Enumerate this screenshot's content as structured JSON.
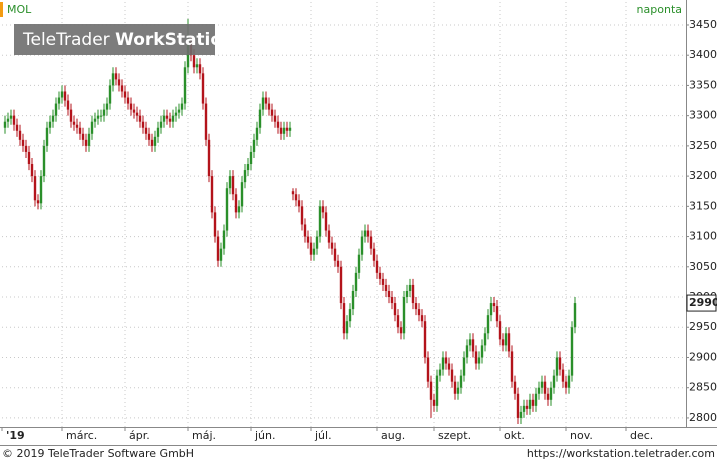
{
  "chart_data": {
    "type": "candlestick",
    "title": "MOL",
    "frequency": "naponta",
    "x": [
      1,
      2,
      3,
      4,
      5,
      6,
      7,
      8,
      9,
      10,
      11,
      12,
      13,
      14,
      15,
      16,
      17,
      18,
      19,
      20,
      21,
      22,
      23,
      24,
      25,
      26,
      27,
      28,
      29,
      30,
      31,
      32,
      33,
      34,
      35,
      36,
      37,
      38,
      39,
      40,
      41,
      42,
      43,
      44,
      45,
      46,
      47,
      48,
      49,
      50,
      51,
      52,
      53,
      54,
      55,
      56,
      57,
      58,
      59,
      60,
      61,
      62,
      63,
      64,
      65,
      66,
      67,
      68,
      69,
      70,
      71,
      72,
      73,
      74,
      75,
      76,
      77,
      78,
      79,
      80,
      81,
      82,
      83,
      84,
      85,
      86,
      87,
      88,
      89,
      90,
      91,
      92,
      93,
      94,
      95,
      96,
      97,
      98,
      99,
      100,
      101,
      102,
      103,
      104,
      105,
      106,
      107,
      108,
      109,
      110,
      111,
      112,
      113,
      114,
      115,
      116,
      117,
      118,
      119,
      120,
      121,
      122,
      123,
      124,
      125,
      126,
      127,
      128,
      129,
      130,
      131,
      132,
      133,
      134,
      135,
      136,
      137,
      138,
      139,
      140,
      141,
      142,
      143,
      144,
      145,
      146,
      147,
      148,
      149,
      150,
      151,
      152,
      153,
      154,
      155,
      156,
      157,
      158,
      159,
      160,
      161,
      162,
      163,
      164,
      165,
      166,
      167,
      168,
      169,
      170,
      171,
      172,
      173,
      174,
      175,
      176,
      177,
      178,
      179,
      180,
      181,
      182,
      183,
      184,
      185,
      186,
      187,
      188,
      189,
      190,
      191
    ],
    "open": [
      3280,
      3290,
      3295,
      3300,
      3285,
      3275,
      3260,
      3250,
      3240,
      3220,
      3200,
      3160,
      3155,
      3200,
      3250,
      3280,
      3290,
      3300,
      3320,
      3330,
      3340,
      3325,
      3310,
      3290,
      3285,
      3280,
      3270,
      3260,
      3250,
      3270,
      3290,
      3295,
      3300,
      3300,
      3310,
      3320,
      3350,
      3370,
      3360,
      3350,
      3340,
      3330,
      3320,
      3310,
      3305,
      3300,
      3290,
      3280,
      3270,
      3260,
      3250,
      3265,
      3280,
      3290,
      3300,
      3295,
      3290,
      3300,
      3305,
      3310,
      3320,
      3380,
      3420,
      3400,
      3380,
      3385,
      3370,
      3320,
      3260,
      3200,
      3140,
      3100,
      3060,
      3080,
      3110,
      3180,
      3200,
      3170,
      3140,
      3150,
      3190,
      3210,
      3220,
      3240,
      3260,
      3280,
      3310,
      3330,
      3320,
      3310,
      3300,
      3290,
      3280,
      3270,
      3280,
      3275,
      3175,
      3170,
      3160,
      3150,
      3120,
      3100,
      3090,
      3070,
      3080,
      3100,
      3150,
      3140,
      3110,
      3090,
      3080,
      3060,
      3050,
      2990,
      2940,
      2960,
      2980,
      3010,
      3040,
      3070,
      3100,
      3110,
      3100,
      3080,
      3060,
      3040,
      3030,
      3020,
      3010,
      3000,
      2990,
      2970,
      2950,
      2940,
      3000,
      3010,
      3020,
      2990,
      2980,
      2970,
      2960,
      2900,
      2860,
      2830,
      2820,
      2870,
      2880,
      2900,
      2890,
      2880,
      2860,
      2840,
      2850,
      2870,
      2900,
      2920,
      2930,
      2910,
      2890,
      2900,
      2920,
      2940,
      2970,
      2990,
      2985,
      2960,
      2930,
      2920,
      2940,
      2910,
      2860,
      2840,
      2800,
      2810,
      2820,
      2815,
      2830,
      2820,
      2840,
      2850,
      2860,
      2840,
      2830,
      2850,
      2870,
      2900,
      2880,
      2860,
      2850,
      2870,
      2950
    ],
    "high": [
      3300,
      3305,
      3310,
      3310,
      3295,
      3285,
      3270,
      3260,
      3250,
      3230,
      3210,
      3170,
      3210,
      3260,
      3290,
      3300,
      3310,
      3330,
      3340,
      3350,
      3350,
      3335,
      3320,
      3300,
      3295,
      3290,
      3280,
      3270,
      3280,
      3300,
      3305,
      3310,
      3310,
      3320,
      3330,
      3360,
      3380,
      3380,
      3370,
      3360,
      3350,
      3340,
      3330,
      3320,
      3315,
      3310,
      3300,
      3290,
      3280,
      3270,
      3275,
      3290,
      3300,
      3310,
      3310,
      3305,
      3310,
      3315,
      3320,
      3330,
      3390,
      3460,
      3430,
      3410,
      3395,
      3395,
      3380,
      3330,
      3270,
      3210,
      3150,
      3110,
      3090,
      3120,
      3190,
      3210,
      3210,
      3180,
      3160,
      3200,
      3220,
      3230,
      3250,
      3270,
      3290,
      3320,
      3340,
      3340,
      3330,
      3320,
      3310,
      3300,
      3290,
      3290,
      3290,
      3290,
      3180,
      3180,
      3170,
      3160,
      3130,
      3110,
      3100,
      3090,
      3110,
      3160,
      3160,
      3150,
      3120,
      3100,
      3090,
      3070,
      3060,
      3000,
      2970,
      2990,
      3020,
      3050,
      3080,
      3110,
      3120,
      3120,
      3110,
      3090,
      3070,
      3050,
      3040,
      3030,
      3020,
      3010,
      3000,
      2980,
      2960,
      3010,
      3020,
      3030,
      3030,
      3000,
      2990,
      2980,
      2970,
      2910,
      2870,
      2840,
      2880,
      2890,
      2910,
      2910,
      2900,
      2890,
      2870,
      2860,
      2880,
      2910,
      2930,
      2940,
      2940,
      2920,
      2910,
      2930,
      2950,
      2980,
      3000,
      3000,
      2995,
      2970,
      2940,
      2950,
      2950,
      2920,
      2870,
      2850,
      2820,
      2830,
      2830,
      2840,
      2840,
      2850,
      2860,
      2870,
      2870,
      2850,
      2860,
      2880,
      2910,
      2910,
      2890,
      2870,
      2880,
      2960,
      3000
    ],
    "low": [
      3270,
      3280,
      3285,
      3275,
      3265,
      3250,
      3240,
      3230,
      3210,
      3190,
      3150,
      3145,
      3145,
      3190,
      3240,
      3270,
      3280,
      3290,
      3310,
      3320,
      3315,
      3300,
      3280,
      3275,
      3270,
      3260,
      3250,
      3240,
      3240,
      3260,
      3280,
      3285,
      3290,
      3290,
      3300,
      3310,
      3340,
      3350,
      3340,
      3330,
      3320,
      3310,
      3300,
      3295,
      3290,
      3280,
      3270,
      3260,
      3250,
      3240,
      3240,
      3255,
      3270,
      3280,
      3285,
      3280,
      3280,
      3290,
      3295,
      3300,
      3310,
      3370,
      3390,
      3370,
      3370,
      3360,
      3310,
      3250,
      3190,
      3130,
      3090,
      3050,
      3050,
      3070,
      3100,
      3170,
      3160,
      3130,
      3130,
      3140,
      3180,
      3200,
      3210,
      3230,
      3250,
      3270,
      3300,
      3310,
      3300,
      3290,
      3280,
      3270,
      3260,
      3260,
      3265,
      3265,
      3160,
      3150,
      3140,
      3110,
      3090,
      3080,
      3060,
      3060,
      3070,
      3090,
      3130,
      3100,
      3080,
      3070,
      3050,
      3040,
      2980,
      2930,
      2930,
      2950,
      2970,
      3000,
      3030,
      3060,
      3090,
      3090,
      3070,
      3050,
      3030,
      3020,
      3010,
      3000,
      2990,
      2980,
      2960,
      2940,
      2930,
      2930,
      2990,
      3000,
      2980,
      2970,
      2960,
      2950,
      2890,
      2850,
      2800,
      2810,
      2810,
      2860,
      2870,
      2880,
      2870,
      2850,
      2830,
      2830,
      2840,
      2860,
      2890,
      2910,
      2900,
      2880,
      2880,
      2890,
      2910,
      2930,
      2960,
      2975,
      2950,
      2920,
      2910,
      2910,
      2900,
      2850,
      2830,
      2790,
      2790,
      2800,
      2805,
      2805,
      2810,
      2810,
      2830,
      2840,
      2830,
      2820,
      2820,
      2840,
      2860,
      2870,
      2850,
      2840,
      2840,
      2860,
      2940
    ],
    "close": [
      3290,
      3295,
      3300,
      3285,
      3275,
      3260,
      3250,
      3240,
      3220,
      3200,
      3160,
      3155,
      3200,
      3250,
      3280,
      3290,
      3300,
      3320,
      3330,
      3340,
      3325,
      3310,
      3290,
      3285,
      3280,
      3270,
      3260,
      3250,
      3270,
      3290,
      3295,
      3300,
      3300,
      3310,
      3320,
      3350,
      3370,
      3360,
      3350,
      3340,
      3330,
      3320,
      3310,
      3305,
      3300,
      3290,
      3280,
      3270,
      3260,
      3250,
      3265,
      3280,
      3290,
      3300,
      3295,
      3290,
      3300,
      3305,
      3310,
      3320,
      3380,
      3420,
      3400,
      3380,
      3385,
      3370,
      3320,
      3260,
      3200,
      3140,
      3100,
      3060,
      3080,
      3110,
      3180,
      3200,
      3170,
      3140,
      3150,
      3190,
      3210,
      3220,
      3240,
      3260,
      3280,
      3310,
      3330,
      3320,
      3310,
      3300,
      3290,
      3280,
      3270,
      3280,
      3275,
      3280,
      3170,
      3160,
      3150,
      3120,
      3100,
      3090,
      3070,
      3080,
      3100,
      3150,
      3140,
      3110,
      3090,
      3080,
      3060,
      3050,
      2990,
      2940,
      2960,
      2980,
      3010,
      3040,
      3070,
      3100,
      3110,
      3100,
      3080,
      3060,
      3040,
      3030,
      3020,
      3010,
      3000,
      2990,
      2970,
      2950,
      2940,
      3000,
      3010,
      3020,
      2990,
      2980,
      2970,
      2960,
      2900,
      2860,
      2830,
      2820,
      2870,
      2880,
      2900,
      2890,
      2880,
      2860,
      2840,
      2850,
      2870,
      2900,
      2920,
      2930,
      2910,
      2890,
      2900,
      2920,
      2940,
      2970,
      2990,
      2985,
      2960,
      2930,
      2920,
      2940,
      2910,
      2860,
      2840,
      2800,
      2810,
      2820,
      2815,
      2830,
      2820,
      2840,
      2850,
      2860,
      2840,
      2830,
      2850,
      2870,
      2900,
      2880,
      2860,
      2850,
      2870,
      2950,
      2990
    ],
    "up_color": "#2a8f2a",
    "down_color": "#b3131b",
    "xlim": [
      0,
      228
    ],
    "xticks": [
      {
        "value": 0,
        "label": "'19"
      },
      {
        "value": 20,
        "label": "márc."
      },
      {
        "value": 41,
        "label": "ápr."
      },
      {
        "value": 62,
        "label": "máj."
      },
      {
        "value": 83,
        "label": "jún."
      },
      {
        "value": 103,
        "label": "júl."
      },
      {
        "value": 125,
        "label": "aug."
      },
      {
        "value": 144,
        "label": "szept."
      },
      {
        "value": 166,
        "label": "okt."
      },
      {
        "value": 188,
        "label": "nov."
      },
      {
        "value": 208,
        "label": "dec."
      }
    ],
    "ylim": [
      2785,
      3488
    ],
    "yticks": [
      2800,
      2850,
      2900,
      2950,
      3000,
      3050,
      3100,
      3150,
      3200,
      3250,
      3300,
      3350,
      3400,
      3450
    ],
    "grid": true
  },
  "watermark": {
    "brand": "TeleTrader",
    "product": "WorkStation"
  },
  "footer": {
    "copyright": "© 2019 TeleTrader Software GmbH",
    "url": "https://workstation.teletrader.com"
  }
}
